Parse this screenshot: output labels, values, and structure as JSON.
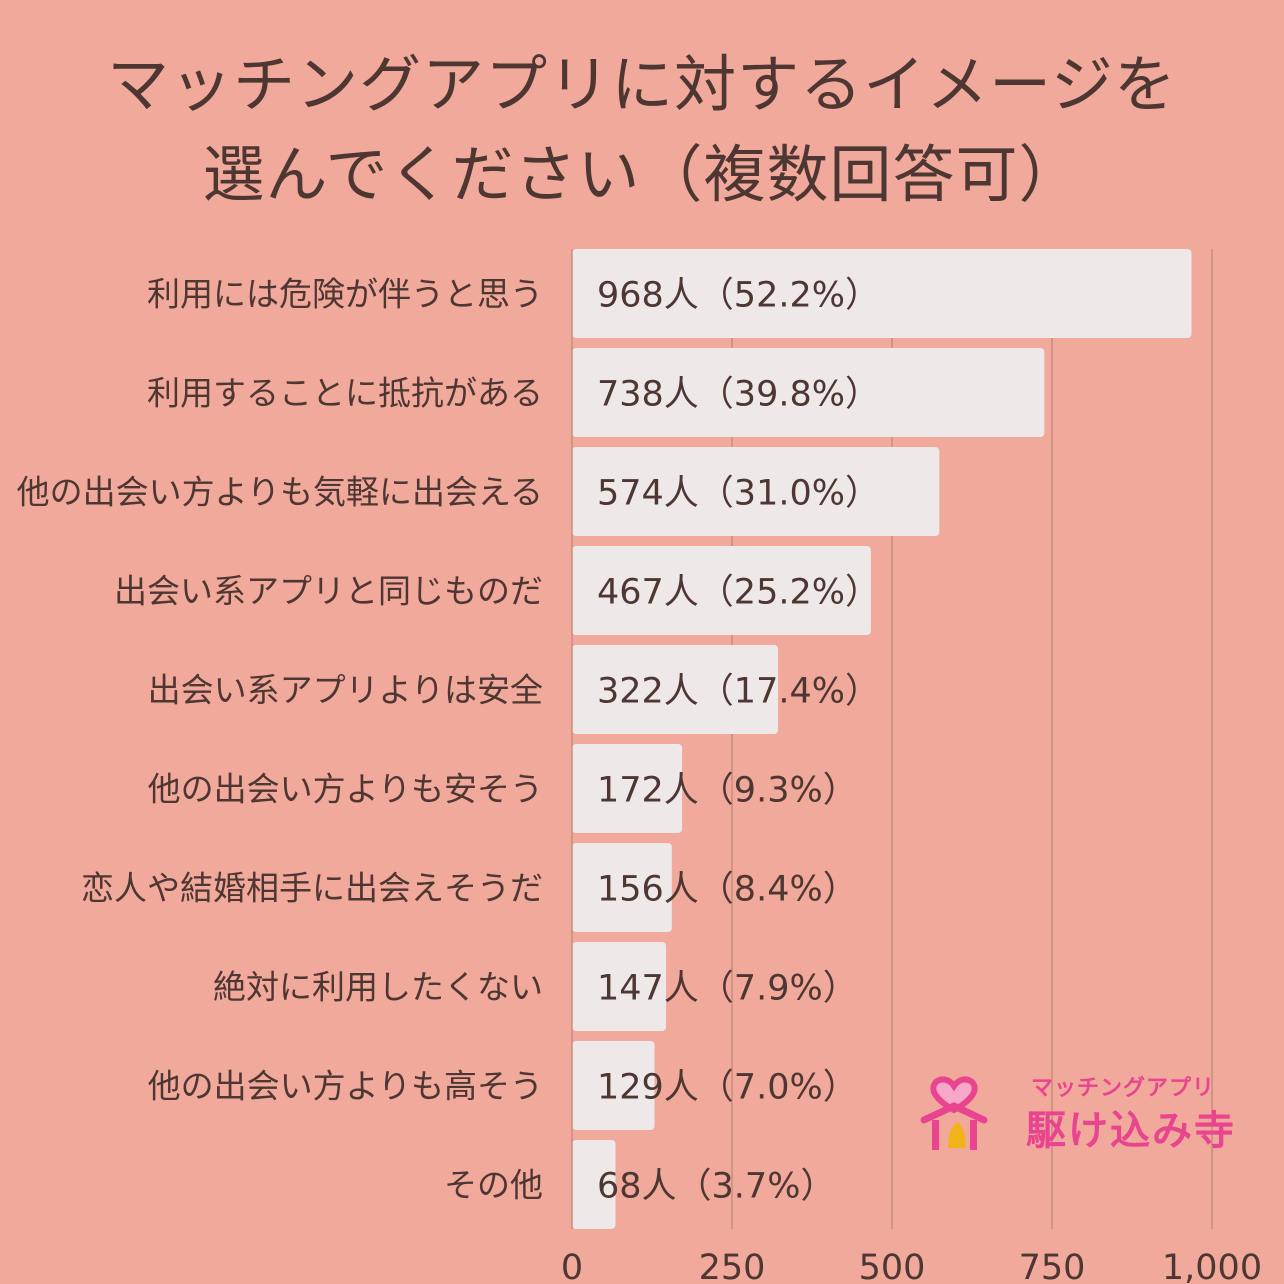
{
  "title_lines": [
    "マッチングアプリに対するイメージを",
    "選んでください（複数回答可）"
  ],
  "chart_data": {
    "type": "bar",
    "orientation": "horizontal",
    "categories": [
      "利用には危険が伴うと思う",
      "利用することに抵抗がある",
      "他の出会い方よりも気軽に出会える",
      "出会い系アプリと同じものだ",
      "出会い系アプリよりは安全",
      "他の出会い方よりも安そう",
      "恋人や結婚相手に出会えそうだ",
      "絶対に利用したくない",
      "他の出会い方よりも高そう",
      "その他"
    ],
    "values": [
      968,
      738,
      574,
      467,
      322,
      172,
      156,
      147,
      129,
      68
    ],
    "value_labels": [
      "968人（52.2%）",
      "738人（39.8%）",
      "574人（31.0%）",
      "467人（25.2%）",
      "322人（17.4%）",
      "172人（9.3%）",
      "156人（8.4%）",
      "147人（7.9%）",
      "129人（7.0%）",
      "68人（3.7%）"
    ],
    "xlim": [
      0,
      1000
    ],
    "xticks": [
      0,
      250,
      500,
      750,
      1000
    ],
    "xtick_labels": [
      "0",
      "250",
      "500",
      "750",
      "1,000"
    ],
    "grid": true,
    "colors": {
      "background": "#f0a99a",
      "bar": "#eee8e8",
      "grid": "#c98d82",
      "text": "#4e3733"
    }
  },
  "logo": {
    "subtitle": "マッチングアプリ",
    "name": "駆け込み寺",
    "color": "#e9448f"
  }
}
